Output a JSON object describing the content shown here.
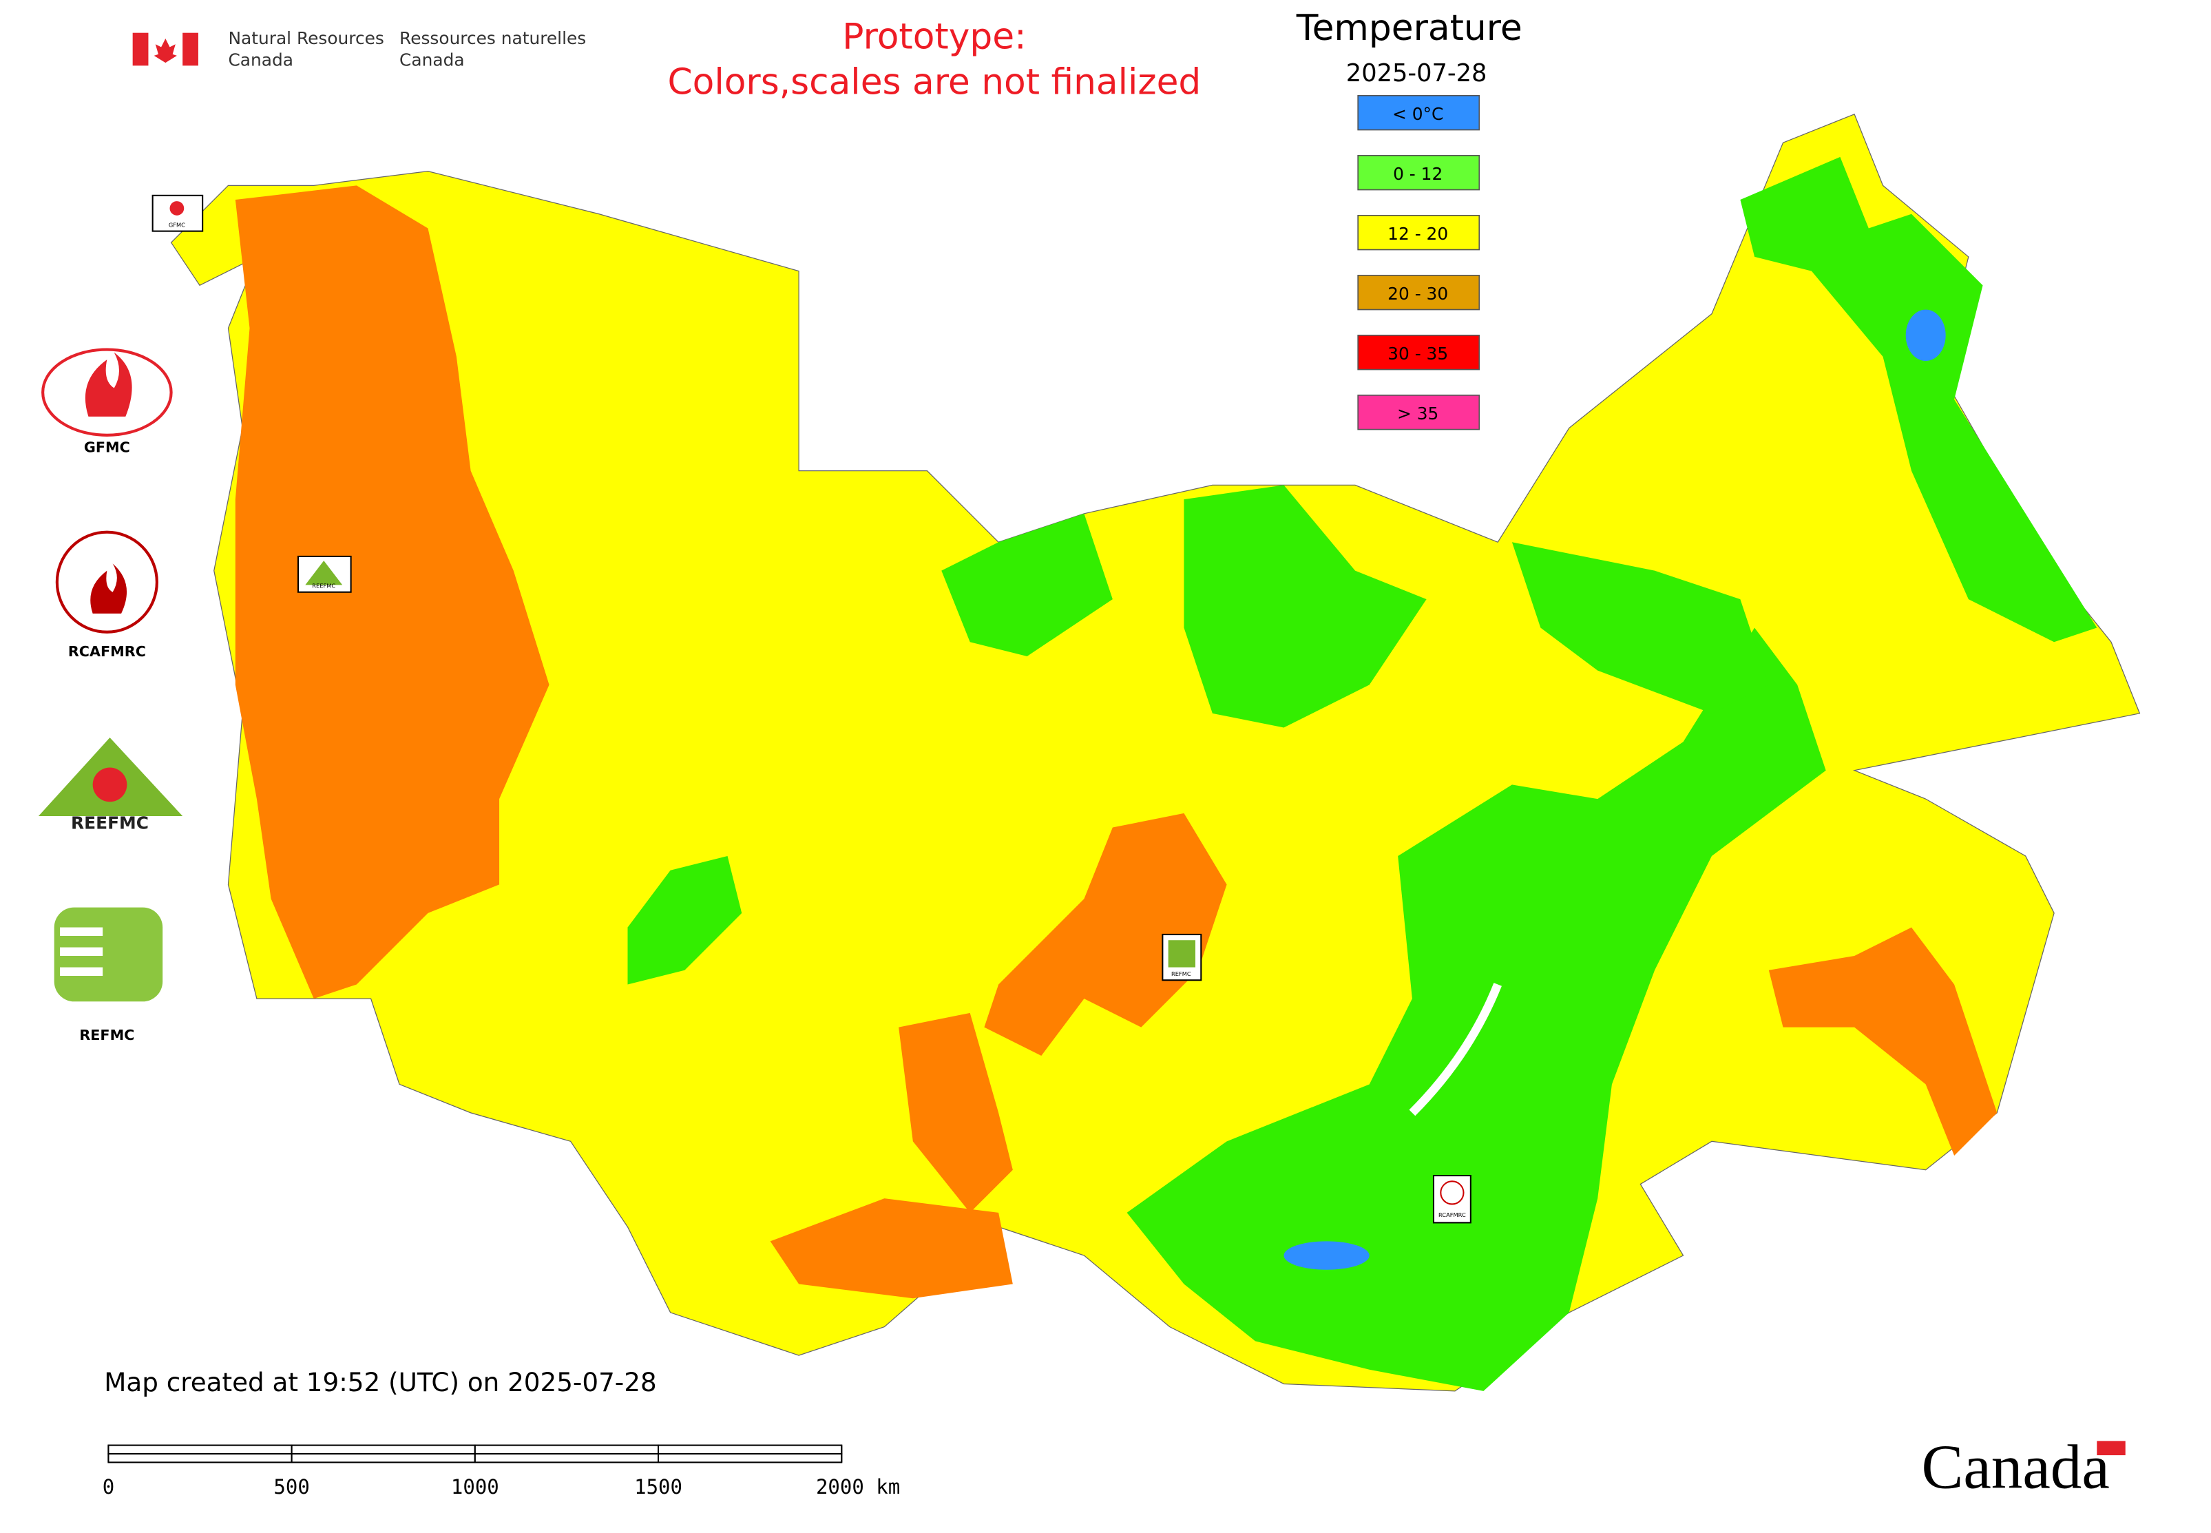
{
  "header": {
    "department_en": [
      "Natural Resources",
      "Canada"
    ],
    "department_fr": [
      "Ressources naturelles",
      "Canada"
    ],
    "prototype_notice": [
      "Prototype:",
      "Colors,scales are not finalized"
    ]
  },
  "legend": {
    "title": "Temperature",
    "date": "2025-07-28",
    "entries": [
      {
        "label": "< 0°C",
        "color": "#2f8fff"
      },
      {
        "label": "0 - 12",
        "color": "#66ff33"
      },
      {
        "label": "12 - 20",
        "color": "#ffff00"
      },
      {
        "label": "20 - 30",
        "color": "#e19d00"
      },
      {
        "label": "30 - 35",
        "color": "#ff0000"
      },
      {
        "label": "> 35",
        "color": "#ff3399"
      }
    ]
  },
  "logos": [
    "GFMC",
    "RCAFMRC",
    "REEFMC",
    "REFMC"
  ],
  "map_labels": [
    "GFMC",
    "REEFMC",
    "REFMC",
    "RCAFMRC"
  ],
  "footer": {
    "created": "Map created at 19:52 (UTC) on 2025-07-28",
    "wordmark": "Canada"
  },
  "scale_bar": {
    "ticks": [
      0,
      500,
      1000,
      1500,
      {
        "value": 2000,
        "label": "2000 km"
      }
    ]
  }
}
